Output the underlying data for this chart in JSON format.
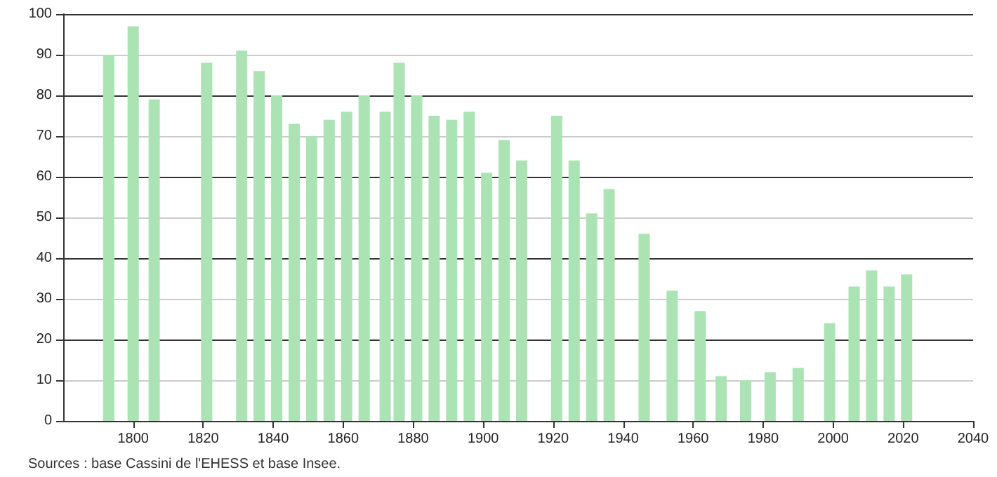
{
  "chart_data": {
    "type": "bar",
    "x": [
      1793,
      1800,
      1806,
      1821,
      1831,
      1836,
      1841,
      1846,
      1851,
      1856,
      1861,
      1866,
      1872,
      1876,
      1881,
      1886,
      1891,
      1896,
      1901,
      1906,
      1911,
      1921,
      1926,
      1931,
      1936,
      1946,
      1954,
      1962,
      1968,
      1975,
      1982,
      1990,
      1999,
      2006,
      2011,
      2016,
      2021
    ],
    "values": [
      90,
      97,
      79,
      88,
      91,
      86,
      80,
      73,
      70,
      74,
      76,
      80,
      76,
      88,
      80,
      75,
      74,
      76,
      61,
      69,
      64,
      75,
      64,
      51,
      57,
      46,
      32,
      27,
      11,
      10,
      12,
      13,
      24,
      33,
      37,
      33,
      36
    ],
    "color": "#ace3b4",
    "xlim": [
      1780,
      2040
    ],
    "xticks": [
      1800,
      1820,
      1840,
      1860,
      1880,
      1900,
      1920,
      1940,
      1960,
      1980,
      2000,
      2020,
      2040
    ],
    "ylim": [
      0,
      100
    ],
    "yticks": [
      0,
      10,
      20,
      30,
      40,
      50,
      60,
      70,
      80,
      90,
      100
    ],
    "grid": "y",
    "annotations": [
      "Sources : base Cassini de l'EHESS et base Insee."
    ]
  }
}
